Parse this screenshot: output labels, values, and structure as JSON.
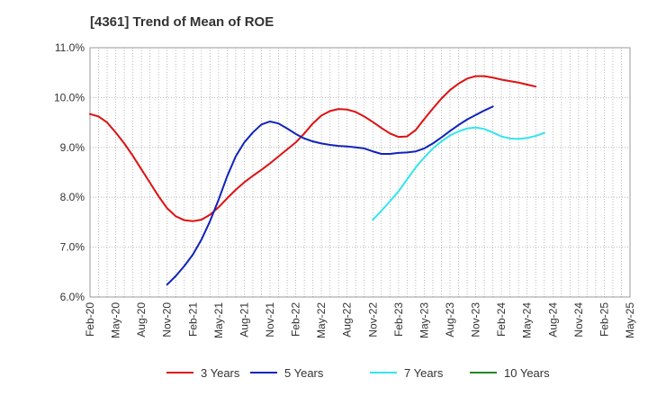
{
  "chart_data": {
    "type": "line",
    "title": "[4361]  Trend of Mean of ROE",
    "xlabel": "",
    "ylabel": "",
    "ylim": [
      6.0,
      11.0
    ],
    "y_ticks": [
      "6.0%",
      "7.0%",
      "8.0%",
      "9.0%",
      "10.0%",
      "11.0%"
    ],
    "x_ticks": [
      "Feb-20",
      "May-20",
      "Aug-20",
      "Nov-20",
      "Feb-21",
      "May-21",
      "Aug-21",
      "Nov-21",
      "Feb-22",
      "May-22",
      "Aug-22",
      "Nov-22",
      "Feb-23",
      "May-23",
      "Aug-23",
      "Nov-23",
      "Feb-24",
      "May-24",
      "Aug-24",
      "Nov-24",
      "Feb-25",
      "May-25"
    ],
    "grid": true,
    "legend_position": "bottom",
    "series": [
      {
        "name": "3 Years",
        "color": "#dd1111",
        "points": [
          [
            "Feb-20",
            9.67
          ],
          [
            "Mar-20",
            9.62
          ],
          [
            "Apr-20",
            9.5
          ],
          [
            "May-20",
            9.3
          ],
          [
            "Jun-20",
            9.08
          ],
          [
            "Jul-20",
            8.83
          ],
          [
            "Aug-20",
            8.56
          ],
          [
            "Sep-20",
            8.29
          ],
          [
            "Oct-20",
            8.02
          ],
          [
            "Nov-20",
            7.78
          ],
          [
            "Dec-20",
            7.62
          ],
          [
            "Jan-21",
            7.54
          ],
          [
            "Feb-21",
            7.52
          ],
          [
            "Mar-21",
            7.55
          ],
          [
            "Apr-21",
            7.65
          ],
          [
            "May-21",
            7.8
          ],
          [
            "Jun-21",
            7.98
          ],
          [
            "Jul-21",
            8.15
          ],
          [
            "Aug-21",
            8.3
          ],
          [
            "Sep-21",
            8.43
          ],
          [
            "Oct-21",
            8.55
          ],
          [
            "Nov-21",
            8.68
          ],
          [
            "Dec-21",
            8.82
          ],
          [
            "Jan-22",
            8.96
          ],
          [
            "Feb-22",
            9.1
          ],
          [
            "Mar-22",
            9.28
          ],
          [
            "Apr-22",
            9.48
          ],
          [
            "May-22",
            9.64
          ],
          [
            "Jun-22",
            9.73
          ],
          [
            "Jul-22",
            9.77
          ],
          [
            "Aug-22",
            9.76
          ],
          [
            "Sep-22",
            9.71
          ],
          [
            "Oct-22",
            9.62
          ],
          [
            "Nov-22",
            9.51
          ],
          [
            "Dec-22",
            9.39
          ],
          [
            "Jan-23",
            9.28
          ],
          [
            "Feb-23",
            9.21
          ],
          [
            "Mar-23",
            9.22
          ],
          [
            "Apr-23",
            9.35
          ],
          [
            "May-23",
            9.57
          ],
          [
            "Jun-23",
            9.78
          ],
          [
            "Jul-23",
            9.98
          ],
          [
            "Aug-23",
            10.15
          ],
          [
            "Sep-23",
            10.28
          ],
          [
            "Oct-23",
            10.38
          ],
          [
            "Nov-23",
            10.43
          ],
          [
            "Dec-23",
            10.43
          ],
          [
            "Jan-24",
            10.4
          ],
          [
            "Feb-24",
            10.36
          ],
          [
            "Mar-24",
            10.33
          ],
          [
            "Apr-24",
            10.3
          ],
          [
            "May-24",
            10.26
          ],
          [
            "Jun-24",
            10.22
          ]
        ]
      },
      {
        "name": "5 Years",
        "color": "#1122bb",
        "points": [
          [
            "Nov-20",
            6.25
          ],
          [
            "Dec-20",
            6.42
          ],
          [
            "Jan-21",
            6.62
          ],
          [
            "Feb-21",
            6.85
          ],
          [
            "Mar-21",
            7.15
          ],
          [
            "Apr-21",
            7.52
          ],
          [
            "May-21",
            7.95
          ],
          [
            "Jun-21",
            8.42
          ],
          [
            "Jul-21",
            8.82
          ],
          [
            "Aug-21",
            9.1
          ],
          [
            "Sep-21",
            9.3
          ],
          [
            "Oct-21",
            9.46
          ],
          [
            "Nov-21",
            9.52
          ],
          [
            "Dec-21",
            9.48
          ],
          [
            "Jan-22",
            9.38
          ],
          [
            "Feb-22",
            9.27
          ],
          [
            "Mar-22",
            9.18
          ],
          [
            "Apr-22",
            9.12
          ],
          [
            "May-22",
            9.08
          ],
          [
            "Jun-22",
            9.05
          ],
          [
            "Jul-22",
            9.03
          ],
          [
            "Aug-22",
            9.02
          ],
          [
            "Sep-22",
            9.0
          ],
          [
            "Oct-22",
            8.98
          ],
          [
            "Nov-22",
            8.92
          ],
          [
            "Dec-22",
            8.87
          ],
          [
            "Jan-23",
            8.87
          ],
          [
            "Feb-23",
            8.89
          ],
          [
            "Mar-23",
            8.9
          ],
          [
            "Apr-23",
            8.92
          ],
          [
            "May-23",
            8.98
          ],
          [
            "Jun-23",
            9.08
          ],
          [
            "Jul-23",
            9.2
          ],
          [
            "Aug-23",
            9.33
          ],
          [
            "Sep-23",
            9.45
          ],
          [
            "Oct-23",
            9.56
          ],
          [
            "Nov-23",
            9.65
          ],
          [
            "Dec-23",
            9.74
          ],
          [
            "Jan-24",
            9.82
          ]
        ]
      },
      {
        "name": "7 Years",
        "color": "#33e5ee",
        "points": [
          [
            "Nov-22",
            7.55
          ],
          [
            "Dec-22",
            7.73
          ],
          [
            "Jan-23",
            7.92
          ],
          [
            "Feb-23",
            8.12
          ],
          [
            "Mar-23",
            8.36
          ],
          [
            "Apr-23",
            8.6
          ],
          [
            "May-23",
            8.8
          ],
          [
            "Jun-23",
            8.98
          ],
          [
            "Jul-23",
            9.12
          ],
          [
            "Aug-23",
            9.24
          ],
          [
            "Sep-23",
            9.32
          ],
          [
            "Oct-23",
            9.38
          ],
          [
            "Nov-23",
            9.4
          ],
          [
            "Dec-23",
            9.37
          ],
          [
            "Jan-24",
            9.3
          ],
          [
            "Feb-24",
            9.22
          ],
          [
            "Mar-24",
            9.18
          ],
          [
            "Apr-24",
            9.17
          ],
          [
            "May-24",
            9.19
          ],
          [
            "Jun-24",
            9.23
          ],
          [
            "Jul-24",
            9.29
          ]
        ]
      },
      {
        "name": "10 Years",
        "color": "#228822",
        "points": []
      }
    ]
  }
}
